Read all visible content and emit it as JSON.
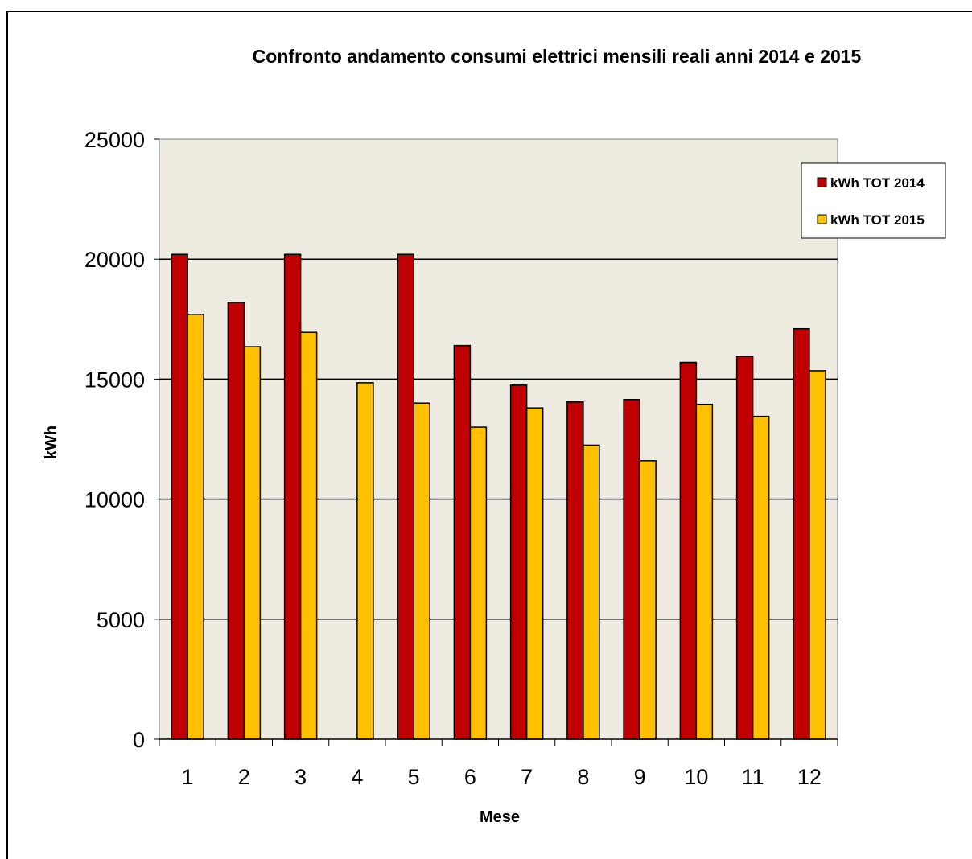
{
  "chart_data": {
    "type": "bar",
    "title": "Confronto andamento consumi elettrici mensili reali anni 2014  e 2015",
    "xlabel": "Mese",
    "ylabel": "kWh",
    "categories": [
      "1",
      "2",
      "3",
      "4",
      "5",
      "6",
      "7",
      "8",
      "9",
      "10",
      "11",
      "12"
    ],
    "series": [
      {
        "name": "kWh TOT 2014",
        "color": "#C00000",
        "values": [
          20200,
          18200,
          20200,
          0,
          20200,
          16400,
          14750,
          14050,
          14150,
          15700,
          15950,
          17100
        ]
      },
      {
        "name": "kWh TOT 2015",
        "color": "#FFC000",
        "values": [
          17700,
          16350,
          16950,
          14850,
          14000,
          13000,
          13800,
          12250,
          11600,
          13950,
          13450,
          15350
        ]
      }
    ],
    "ylim": [
      0,
      25000
    ],
    "yticks": [
      "0",
      "5000",
      "10000",
      "15000",
      "20000",
      "25000"
    ],
    "grid": true,
    "legend_position": "top-right",
    "plot_background": "#EEECE1"
  }
}
